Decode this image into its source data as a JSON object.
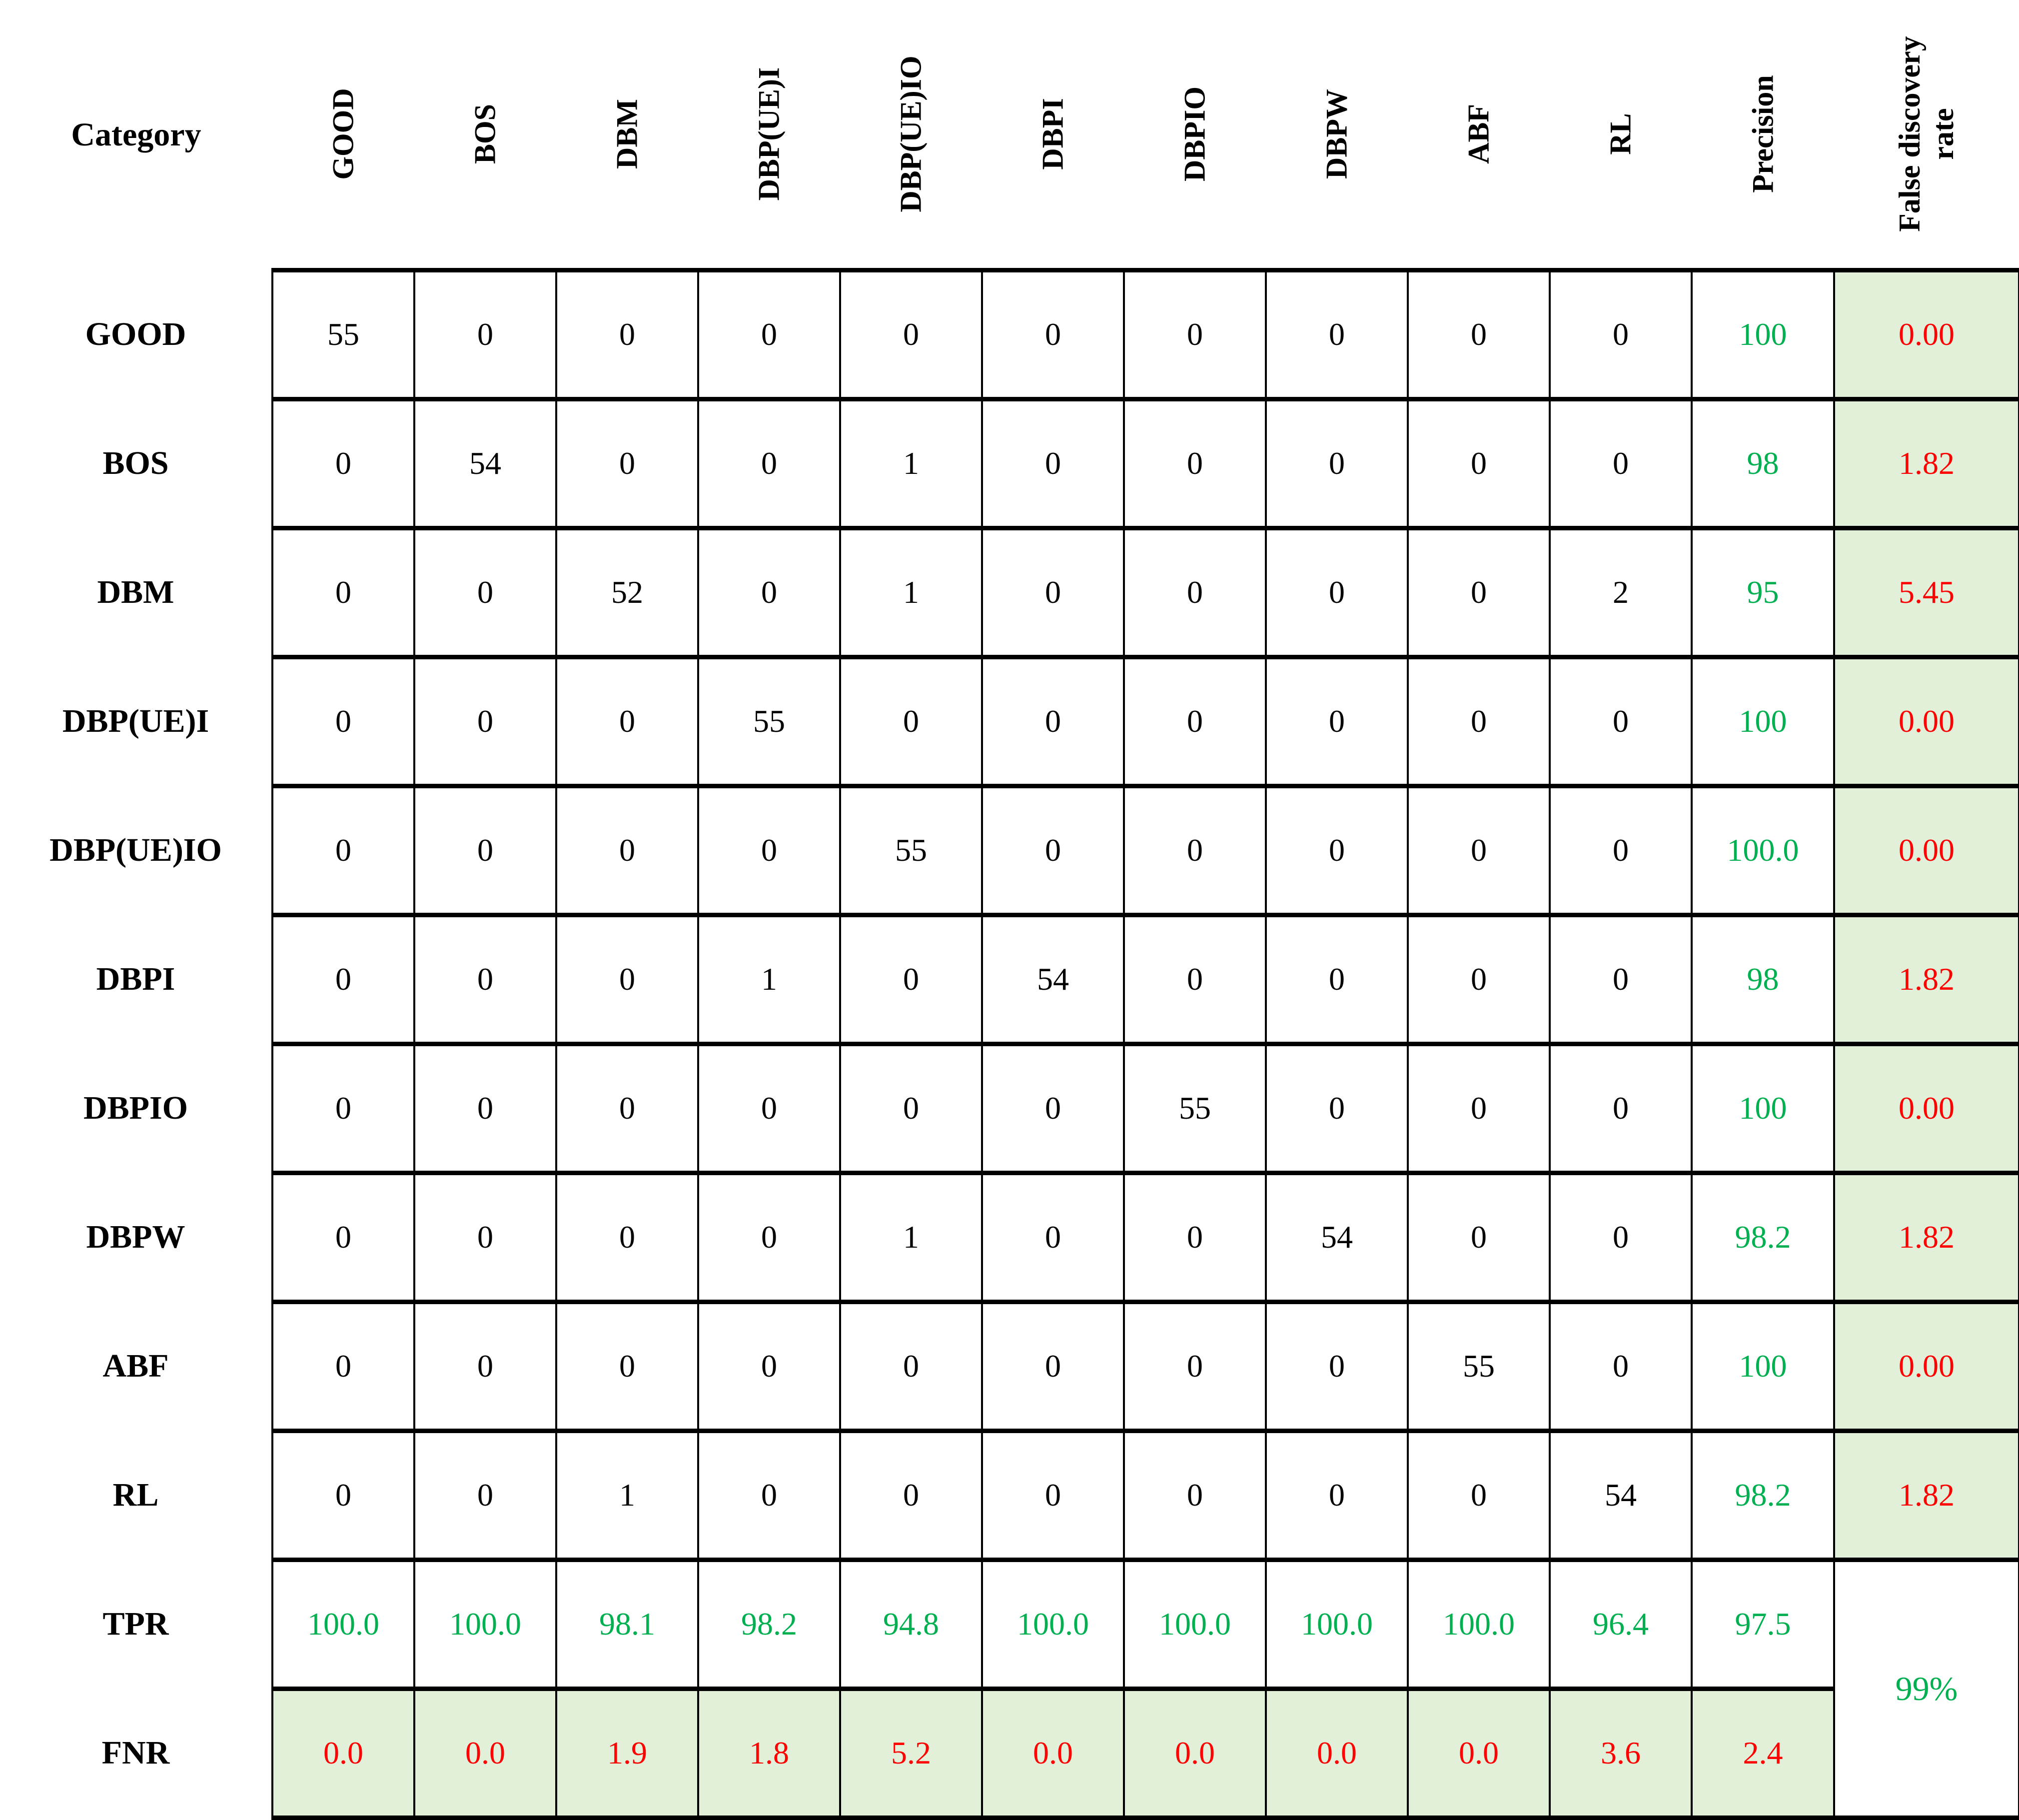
{
  "table": {
    "corner_label": "Category",
    "col_headers": [
      "GOOD",
      "BOS",
      "DBM",
      "DBP(UE)I",
      "DBP(UE)IO",
      "DBPI",
      "DBPIO",
      "DBPW",
      "ABF",
      "RL",
      "Precision",
      "False discovery rate"
    ],
    "rows": [
      {
        "label": "GOOD",
        "counts": [
          "55",
          "0",
          "0",
          "0",
          "0",
          "0",
          "0",
          "0",
          "0",
          "0"
        ],
        "precision": "100",
        "fdr": "0.00"
      },
      {
        "label": "BOS",
        "counts": [
          "0",
          "54",
          "0",
          "0",
          "1",
          "0",
          "0",
          "0",
          "0",
          "0"
        ],
        "precision": "98",
        "fdr": "1.82"
      },
      {
        "label": "DBM",
        "counts": [
          "0",
          "0",
          "52",
          "0",
          "1",
          "0",
          "0",
          "0",
          "0",
          "2"
        ],
        "precision": "95",
        "fdr": "5.45"
      },
      {
        "label": "DBP(UE)I",
        "counts": [
          "0",
          "0",
          "0",
          "55",
          "0",
          "0",
          "0",
          "0",
          "0",
          "0"
        ],
        "precision": "100",
        "fdr": "0.00"
      },
      {
        "label": "DBP(UE)IO",
        "counts": [
          "0",
          "0",
          "0",
          "0",
          "55",
          "0",
          "0",
          "0",
          "0",
          "0"
        ],
        "precision": "100.0",
        "fdr": "0.00"
      },
      {
        "label": "DBPI",
        "counts": [
          "0",
          "0",
          "0",
          "1",
          "0",
          "54",
          "0",
          "0",
          "0",
          "0"
        ],
        "precision": "98",
        "fdr": "1.82"
      },
      {
        "label": "DBPIO",
        "counts": [
          "0",
          "0",
          "0",
          "0",
          "0",
          "0",
          "55",
          "0",
          "0",
          "0"
        ],
        "precision": "100",
        "fdr": "0.00"
      },
      {
        "label": "DBPW",
        "counts": [
          "0",
          "0",
          "0",
          "0",
          "1",
          "0",
          "0",
          "54",
          "0",
          "0"
        ],
        "precision": "98.2",
        "fdr": "1.82"
      },
      {
        "label": "ABF",
        "counts": [
          "0",
          "0",
          "0",
          "0",
          "0",
          "0",
          "0",
          "0",
          "55",
          "0"
        ],
        "precision": "100",
        "fdr": "0.00"
      },
      {
        "label": "RL",
        "counts": [
          "0",
          "0",
          "1",
          "0",
          "0",
          "0",
          "0",
          "0",
          "0",
          "54"
        ],
        "precision": "98.2",
        "fdr": "1.82"
      }
    ],
    "tpr_row": {
      "label": "TPR",
      "values": [
        "100.0",
        "100.0",
        "98.1",
        "98.2",
        "94.8",
        "100.0",
        "100.0",
        "100.0",
        "100.0",
        "96.4"
      ],
      "precision": "97.5"
    },
    "fnr_row": {
      "label": "FNR",
      "values": [
        "0.0",
        "0.0",
        "1.9",
        "1.8",
        "5.2",
        "0.0",
        "0.0",
        "0.0",
        "0.0",
        "3.6"
      ],
      "precision": "2.4"
    },
    "overall_accuracy": "99%"
  },
  "colors": {
    "metric_green": "#00b050",
    "metric_red": "#ff0000",
    "shaded_cell_bg": "#e2efd9",
    "grid_line": "#000000"
  },
  "chart_data": {
    "type": "table",
    "title": "Confusion matrix with Precision, False discovery rate, TPR and FNR",
    "categories": [
      "GOOD",
      "BOS",
      "DBM",
      "DBP(UE)I",
      "DBP(UE)IO",
      "DBPI",
      "DBPIO",
      "DBPW",
      "ABF",
      "RL"
    ],
    "matrix": [
      [
        55,
        0,
        0,
        0,
        0,
        0,
        0,
        0,
        0,
        0
      ],
      [
        0,
        54,
        0,
        0,
        1,
        0,
        0,
        0,
        0,
        0
      ],
      [
        0,
        0,
        52,
        0,
        1,
        0,
        0,
        0,
        0,
        2
      ],
      [
        0,
        0,
        0,
        55,
        0,
        0,
        0,
        0,
        0,
        0
      ],
      [
        0,
        0,
        0,
        0,
        55,
        0,
        0,
        0,
        0,
        0
      ],
      [
        0,
        0,
        0,
        1,
        0,
        54,
        0,
        0,
        0,
        0
      ],
      [
        0,
        0,
        0,
        0,
        0,
        0,
        55,
        0,
        0,
        0
      ],
      [
        0,
        0,
        0,
        0,
        1,
        0,
        0,
        54,
        0,
        0
      ],
      [
        0,
        0,
        0,
        0,
        0,
        0,
        0,
        0,
        55,
        0
      ],
      [
        0,
        0,
        1,
        0,
        0,
        0,
        0,
        0,
        0,
        54
      ]
    ],
    "precision": [
      100,
      98,
      95,
      100,
      100.0,
      98,
      100,
      98.2,
      100,
      98.2
    ],
    "false_discovery_rate": [
      0.0,
      1.82,
      5.45,
      0.0,
      0.0,
      1.82,
      0.0,
      1.82,
      0.0,
      1.82
    ],
    "tpr": [
      100.0,
      100.0,
      98.1,
      98.2,
      94.8,
      100.0,
      100.0,
      100.0,
      100.0,
      96.4
    ],
    "fnr": [
      0.0,
      0.0,
      1.9,
      1.8,
      5.2,
      0.0,
      0.0,
      0.0,
      0.0,
      3.6
    ],
    "overall_precision": 97.5,
    "overall_fnr": 2.4,
    "overall_accuracy_label": "99%"
  }
}
